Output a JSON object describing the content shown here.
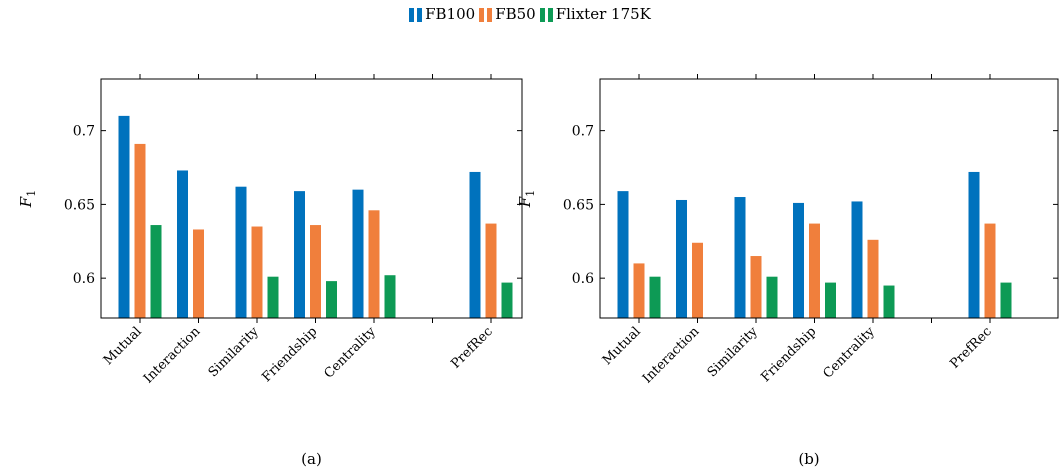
{
  "legend": [
    {
      "label": "FB100",
      "color": "#0072bd"
    },
    {
      "label": "FB50",
      "color": "#f07f3c"
    },
    {
      "label": "Flixter 175K",
      "color": "#0d9a55"
    }
  ],
  "chart_data": [
    {
      "type": "bar",
      "caption": "(a)",
      "ylabel": "F1",
      "ylim": [
        0.573,
        0.735
      ],
      "yticks": [
        "0.6",
        "0.65",
        "0.7"
      ],
      "categories": [
        "Mutual",
        "Interaction",
        "Similarity",
        "Friendship",
        "Centrality",
        "",
        "PrefRec"
      ],
      "series": [
        {
          "name": "FB100",
          "color": "#0072bd",
          "values": [
            0.71,
            0.673,
            0.662,
            0.659,
            0.66,
            null,
            0.672
          ]
        },
        {
          "name": "FB50",
          "color": "#f07f3c",
          "values": [
            0.691,
            0.633,
            0.635,
            0.636,
            0.646,
            null,
            0.637
          ]
        },
        {
          "name": "Flixter 175K",
          "color": "#0d9a55",
          "values": [
            0.636,
            null,
            0.601,
            0.598,
            0.602,
            null,
            0.597
          ]
        }
      ]
    },
    {
      "type": "bar",
      "caption": "(b)",
      "ylabel": "F1",
      "ylim": [
        0.573,
        0.735
      ],
      "yticks": [
        "0.6",
        "0.65",
        "0.7"
      ],
      "categories": [
        "Mutual",
        "Interaction",
        "Similarity",
        "Friendship",
        "Centrality",
        "",
        "PrefRec"
      ],
      "series": [
        {
          "name": "FB100",
          "color": "#0072bd",
          "values": [
            0.659,
            0.653,
            0.655,
            0.651,
            0.652,
            null,
            0.672
          ]
        },
        {
          "name": "FB50",
          "color": "#f07f3c",
          "values": [
            0.61,
            0.624,
            0.615,
            0.637,
            0.626,
            null,
            0.637
          ]
        },
        {
          "name": "Flixter 175K",
          "color": "#0d9a55",
          "values": [
            0.601,
            null,
            0.601,
            0.597,
            0.595,
            null,
            0.597
          ]
        }
      ]
    }
  ]
}
